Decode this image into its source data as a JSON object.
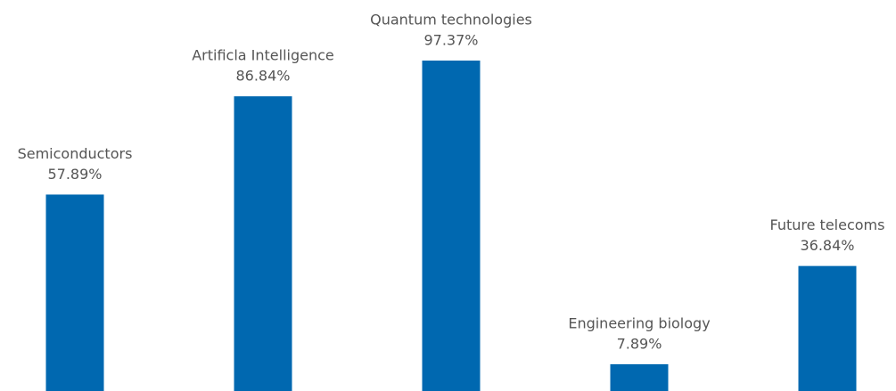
{
  "chart_data": {
    "type": "bar",
    "categories": [
      "Semiconductors",
      "Artificla Intelligence",
      "Quantum technologies",
      "Engineering biology",
      "Future telecoms"
    ],
    "values": [
      57.89,
      86.84,
      97.37,
      7.89,
      36.84
    ],
    "value_labels": [
      "57.89%",
      "86.84%",
      "97.37%",
      "7.89%",
      "36.84%"
    ],
    "color": "#0068b0"
  }
}
